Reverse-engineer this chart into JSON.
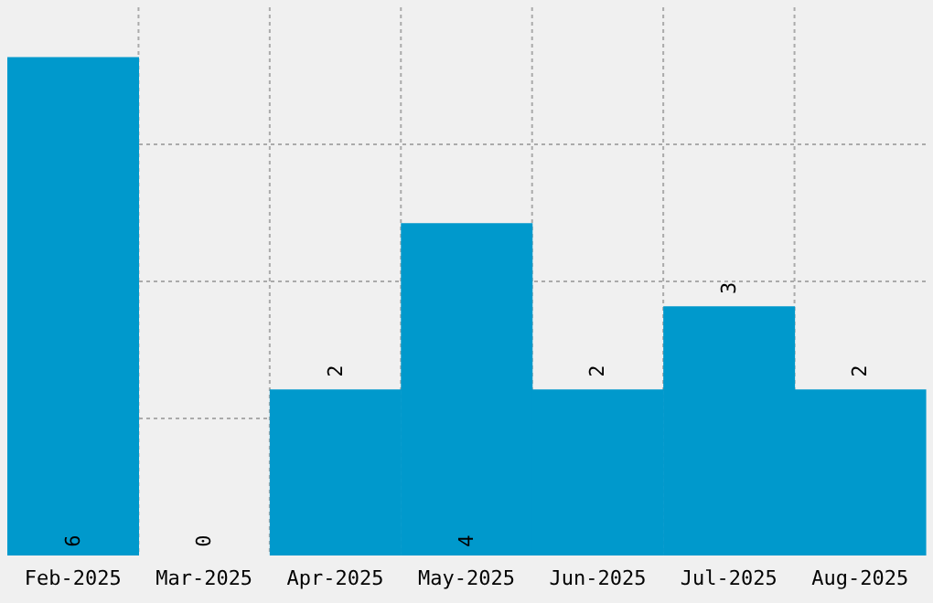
{
  "chart_data": {
    "type": "bar",
    "categories": [
      "Feb-2025",
      "Mar-2025",
      "Apr-2025",
      "May-2025",
      "Jun-2025",
      "Jul-2025",
      "Aug-2025"
    ],
    "values": [
      6,
      0,
      2,
      4,
      2,
      3,
      2
    ],
    "color": "#0099cc",
    "ylim": [
      0,
      6.6
    ],
    "grid": true,
    "tick_labels": "x",
    "data_labels": true
  }
}
